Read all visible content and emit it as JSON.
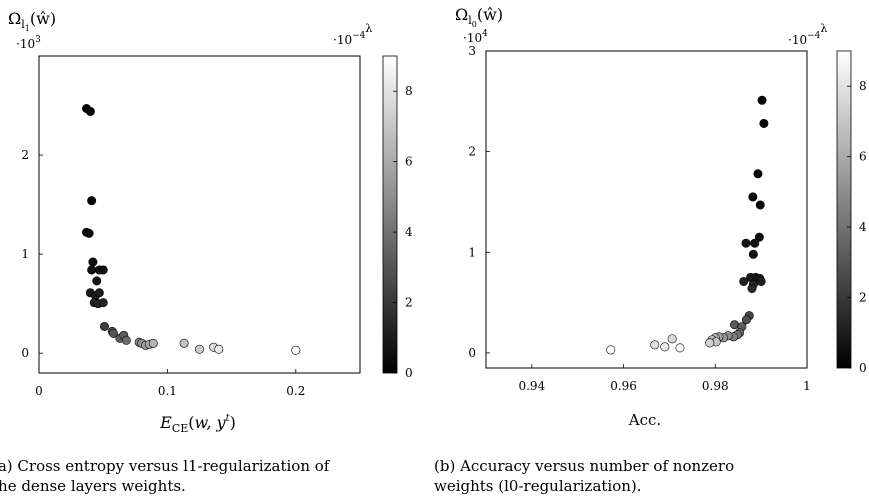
{
  "chart_data": [
    {
      "type": "scatter",
      "ylabel": "Ω_{l1}(ŵ)",
      "xlabel": "E_CE(w, y^t)",
      "y_multiplier": "·10^3",
      "colorbar_multiplier": "·10^−4",
      "colorbar_label": "λ",
      "xlim": [
        0,
        0.25
      ],
      "ylim": [
        -0.2,
        3.0
      ],
      "xticks": [
        0,
        0.1,
        0.2
      ],
      "xtick_labels": [
        "0",
        "0.1",
        "0.2"
      ],
      "yticks": [
        0,
        1,
        2
      ],
      "ytick_labels": [
        "0",
        "1",
        "2"
      ],
      "colorbar_range": [
        0,
        9
      ],
      "colorbar_ticks": [
        0,
        2,
        4,
        6,
        8
      ],
      "colorbar_tick_labels": [
        "0",
        "2",
        "4",
        "6",
        "8"
      ],
      "colormap": [
        "#000000",
        "#ffffff"
      ],
      "grid": false,
      "points": [
        {
          "x": 0.037,
          "y": 2.47,
          "c": 0.1
        },
        {
          "x": 0.04,
          "y": 2.44,
          "c": 0.2
        },
        {
          "x": 0.041,
          "y": 1.54,
          "c": 0.2
        },
        {
          "x": 0.037,
          "y": 1.22,
          "c": 0.3
        },
        {
          "x": 0.039,
          "y": 1.21,
          "c": 0.3
        },
        {
          "x": 0.042,
          "y": 0.92,
          "c": 0.5
        },
        {
          "x": 0.041,
          "y": 0.84,
          "c": 0.5
        },
        {
          "x": 0.047,
          "y": 0.84,
          "c": 0.6
        },
        {
          "x": 0.05,
          "y": 0.84,
          "c": 0.6
        },
        {
          "x": 0.045,
          "y": 0.73,
          "c": 0.8
        },
        {
          "x": 0.04,
          "y": 0.61,
          "c": 0.9
        },
        {
          "x": 0.044,
          "y": 0.58,
          "c": 1.0
        },
        {
          "x": 0.047,
          "y": 0.61,
          "c": 1.0
        },
        {
          "x": 0.043,
          "y": 0.51,
          "c": 1.2
        },
        {
          "x": 0.046,
          "y": 0.5,
          "c": 1.3
        },
        {
          "x": 0.05,
          "y": 0.51,
          "c": 1.3
        },
        {
          "x": 0.051,
          "y": 0.27,
          "c": 2.2
        },
        {
          "x": 0.057,
          "y": 0.22,
          "c": 2.8
        },
        {
          "x": 0.058,
          "y": 0.2,
          "c": 3.0
        },
        {
          "x": 0.063,
          "y": 0.15,
          "c": 3.4
        },
        {
          "x": 0.066,
          "y": 0.18,
          "c": 3.4
        },
        {
          "x": 0.068,
          "y": 0.13,
          "c": 3.8
        },
        {
          "x": 0.078,
          "y": 0.11,
          "c": 4.8
        },
        {
          "x": 0.08,
          "y": 0.1,
          "c": 5.2
        },
        {
          "x": 0.083,
          "y": 0.08,
          "c": 5.6
        },
        {
          "x": 0.086,
          "y": 0.09,
          "c": 6.0
        },
        {
          "x": 0.089,
          "y": 0.1,
          "c": 6.3
        },
        {
          "x": 0.113,
          "y": 0.1,
          "c": 6.8
        },
        {
          "x": 0.125,
          "y": 0.04,
          "c": 7.2
        },
        {
          "x": 0.136,
          "y": 0.06,
          "c": 7.8
        },
        {
          "x": 0.14,
          "y": 0.04,
          "c": 8.2
        },
        {
          "x": 0.2,
          "y": 0.03,
          "c": 9.0
        }
      ]
    },
    {
      "type": "scatter",
      "ylabel": "Ω_{l0}(ŵ)",
      "xlabel": "Acc.",
      "y_multiplier": "·10^4",
      "colorbar_multiplier": "·10^−4",
      "colorbar_label": "λ",
      "xlim": [
        0.93,
        1.0
      ],
      "ylim": [
        -0.15,
        3.0
      ],
      "xticks": [
        0.94,
        0.96,
        0.98,
        1.0
      ],
      "xtick_labels": [
        "0.94",
        "0.96",
        "0.98",
        "1"
      ],
      "yticks": [
        0,
        1,
        2,
        3
      ],
      "ytick_labels": [
        "0",
        "1",
        "2",
        "3"
      ],
      "colorbar_range": [
        0,
        9
      ],
      "colorbar_ticks": [
        0,
        2,
        4,
        6,
        8
      ],
      "colorbar_tick_labels": [
        "0",
        "2",
        "4",
        "6",
        "8"
      ],
      "colormap": [
        "#000000",
        "#ffffff"
      ],
      "grid": false,
      "points": [
        {
          "x": 0.9902,
          "y": 2.51,
          "c": 0.1
        },
        {
          "x": 0.9906,
          "y": 2.28,
          "c": 0.2
        },
        {
          "x": 0.9893,
          "y": 1.78,
          "c": 0.3
        },
        {
          "x": 0.9882,
          "y": 1.55,
          "c": 0.3
        },
        {
          "x": 0.9898,
          "y": 1.47,
          "c": 0.4
        },
        {
          "x": 0.9883,
          "y": 0.98,
          "c": 0.6
        },
        {
          "x": 0.9896,
          "y": 1.15,
          "c": 0.5
        },
        {
          "x": 0.9886,
          "y": 1.09,
          "c": 0.6
        },
        {
          "x": 0.9867,
          "y": 1.09,
          "c": 0.7
        },
        {
          "x": 0.9877,
          "y": 0.75,
          "c": 0.9
        },
        {
          "x": 0.9888,
          "y": 0.75,
          "c": 0.9
        },
        {
          "x": 0.9897,
          "y": 0.74,
          "c": 1.0
        },
        {
          "x": 0.99,
          "y": 0.71,
          "c": 1.1
        },
        {
          "x": 0.9862,
          "y": 0.71,
          "c": 1.2
        },
        {
          "x": 0.9883,
          "y": 0.68,
          "c": 1.3
        },
        {
          "x": 0.988,
          "y": 0.64,
          "c": 1.4
        },
        {
          "x": 0.9874,
          "y": 0.37,
          "c": 2.5
        },
        {
          "x": 0.9868,
          "y": 0.33,
          "c": 2.8
        },
        {
          "x": 0.9842,
          "y": 0.28,
          "c": 3.2
        },
        {
          "x": 0.9858,
          "y": 0.26,
          "c": 3.4
        },
        {
          "x": 0.9853,
          "y": 0.2,
          "c": 3.8
        },
        {
          "x": 0.9848,
          "y": 0.18,
          "c": 4.2
        },
        {
          "x": 0.984,
          "y": 0.16,
          "c": 4.6
        },
        {
          "x": 0.9828,
          "y": 0.17,
          "c": 5.0
        },
        {
          "x": 0.9818,
          "y": 0.15,
          "c": 5.4
        },
        {
          "x": 0.9808,
          "y": 0.16,
          "c": 5.8
        },
        {
          "x": 0.98,
          "y": 0.15,
          "c": 6.2
        },
        {
          "x": 0.9793,
          "y": 0.13,
          "c": 6.6
        },
        {
          "x": 0.9802,
          "y": 0.11,
          "c": 7.0
        },
        {
          "x": 0.9788,
          "y": 0.1,
          "c": 7.4
        },
        {
          "x": 0.9706,
          "y": 0.14,
          "c": 7.6
        },
        {
          "x": 0.9668,
          "y": 0.08,
          "c": 7.9
        },
        {
          "x": 0.969,
          "y": 0.06,
          "c": 8.3
        },
        {
          "x": 0.9723,
          "y": 0.05,
          "c": 8.6
        },
        {
          "x": 0.9572,
          "y": 0.03,
          "c": 9.0
        }
      ]
    }
  ],
  "captions": {
    "a": {
      "line1": "(a) Cross entropy versus l1-regularization of",
      "line2": "the dense layers weights."
    },
    "b": {
      "line1": "(b)  Accuracy   versus   number   of   nonzero",
      "line2": "weights (l0-regularization)."
    }
  }
}
